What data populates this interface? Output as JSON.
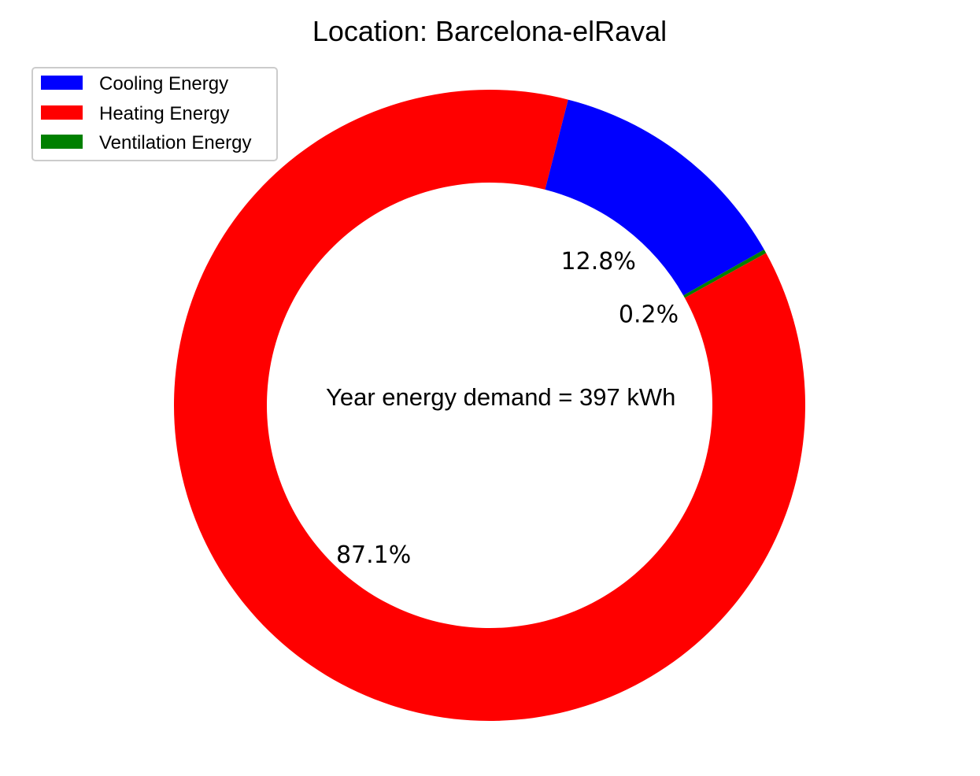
{
  "chart_data": {
    "type": "pie",
    "title": "Location: Barcelona-elRaval",
    "center_text": "Year energy demand = 397 kWh",
    "slices": [
      {
        "label": "Cooling Energy",
        "percent": 12.8,
        "percent_label": "12.8%",
        "color": "#0000ff"
      },
      {
        "label": "Ventilation Energy",
        "percent": 0.2,
        "percent_label": "0.2%",
        "color": "#008000"
      },
      {
        "label": "Heating Energy",
        "percent": 87.1,
        "percent_label": "87.1%",
        "color": "#ff0000"
      }
    ],
    "legend": {
      "placement": "top-left",
      "entries": [
        {
          "label": "Cooling Energy",
          "color": "#0000ff"
        },
        {
          "label": "Heating Energy",
          "color": "#ff0000"
        },
        {
          "label": "Ventilation Energy",
          "color": "#008000"
        }
      ]
    }
  }
}
